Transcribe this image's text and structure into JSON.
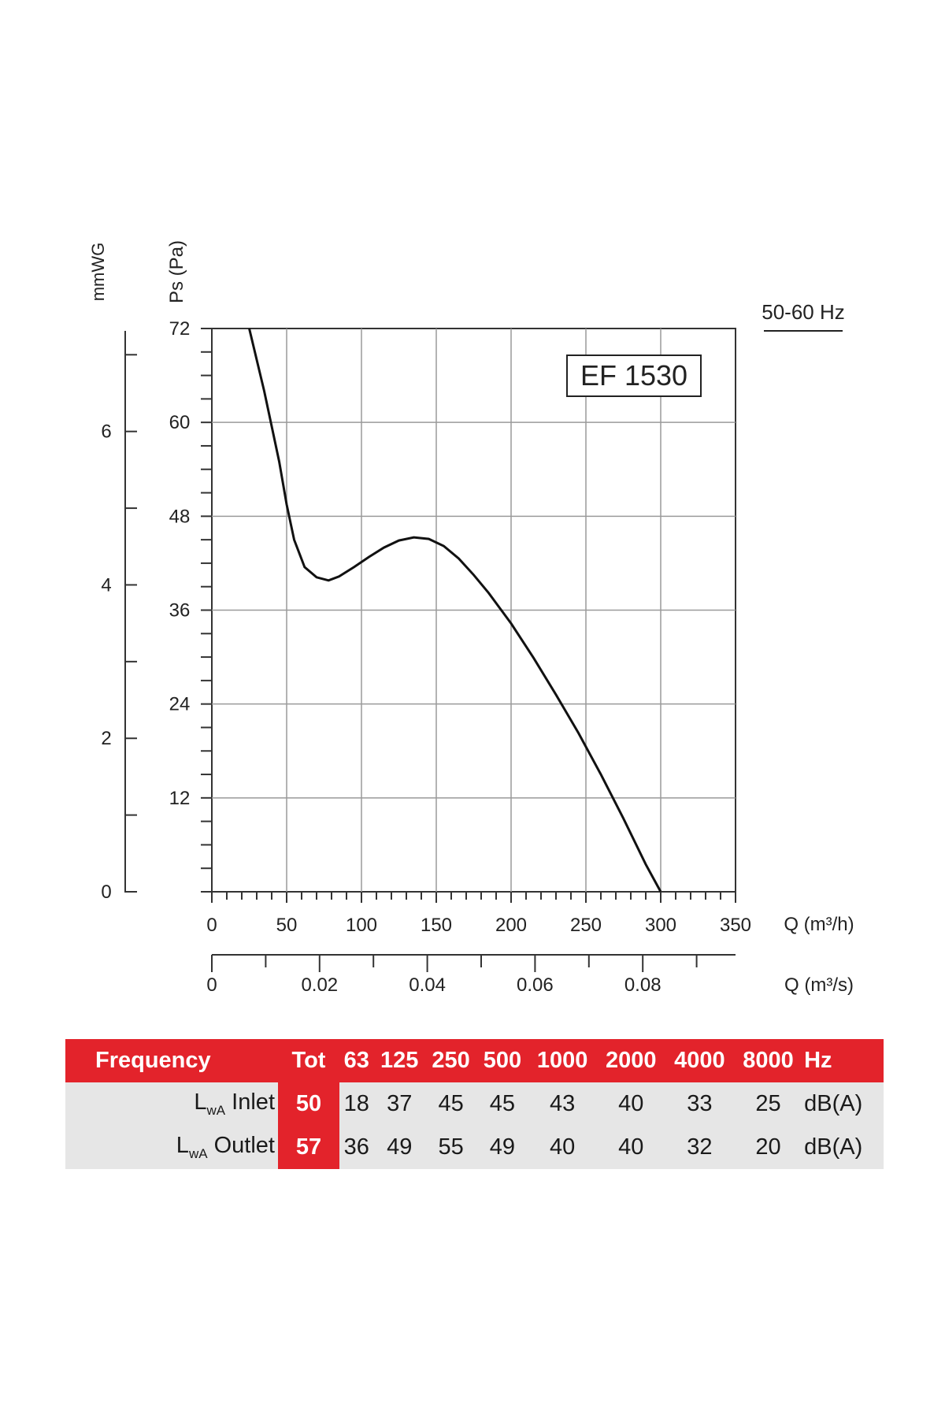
{
  "chart_data": {
    "type": "line",
    "model_label": "EF 1530",
    "frequency_note": "50-60 Hz",
    "y_left_label": "mmWG",
    "y_label": "Ps (Pa)",
    "x_label": "Q (m³/h)",
    "x2_label": "Q (m³/s)",
    "xlim": [
      0,
      350
    ],
    "ylim": [
      0,
      72
    ],
    "x_ticks": [
      "0",
      "50",
      "100",
      "150",
      "200",
      "250",
      "300",
      "350"
    ],
    "y_ticks": [
      "12",
      "24",
      "36",
      "48",
      "60",
      "72"
    ],
    "y_left_ticks": [
      "0",
      "2",
      "4",
      "6"
    ],
    "x2_ticks": [
      "0",
      "0.02",
      "0.04",
      "0.06",
      "0.08"
    ],
    "grid": true,
    "series": [
      {
        "x": [
          25,
          35,
          45,
          50,
          55,
          62,
          70,
          78,
          85,
          95,
          105,
          115,
          125,
          135,
          145,
          155,
          165,
          175,
          185,
          200,
          215,
          230,
          245,
          260,
          275,
          290,
          300
        ],
        "y": [
          72,
          64,
          55,
          49.5,
          45,
          41.5,
          40.2,
          39.8,
          40.3,
          41.5,
          42.8,
          44,
          44.9,
          45.3,
          45.1,
          44.2,
          42.6,
          40.5,
          38.2,
          34.3,
          29.9,
          25.2,
          20.3,
          15,
          9.4,
          3.5,
          0
        ]
      }
    ]
  },
  "noise_table": {
    "header_label": "Frequency",
    "tot_label": "Tot",
    "frequencies": [
      "63",
      "125",
      "250",
      "500",
      "1000",
      "2000",
      "4000",
      "8000"
    ],
    "unit_header": "Hz",
    "rows": [
      {
        "label_main": "L",
        "label_sub": "wA",
        "label_rest": " Inlet",
        "tot": "50",
        "values": [
          "18",
          "37",
          "45",
          "45",
          "43",
          "40",
          "33",
          "25"
        ],
        "unit": "dB(A)"
      },
      {
        "label_main": "L",
        "label_sub": "wA",
        "label_rest": " Outlet",
        "tot": "57",
        "values": [
          "36",
          "49",
          "55",
          "49",
          "40",
          "40",
          "32",
          "20"
        ],
        "unit": "dB(A)"
      }
    ]
  },
  "colors": {
    "accent": "#e3232b",
    "row_bg": "#e6e6e6",
    "grid": "#9a9a9a",
    "curve": "#111111"
  }
}
